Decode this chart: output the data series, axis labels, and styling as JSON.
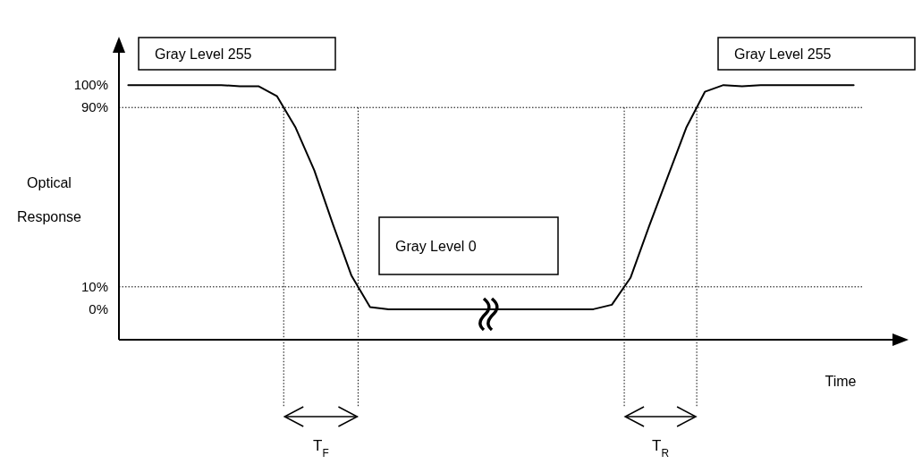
{
  "chart_data": {
    "type": "line",
    "ylabel": "Optical Response",
    "categories": [
      null,
      null,
      null,
      null,
      null,
      null,
      null,
      null,
      null,
      null,
      null,
      null,
      null,
      null,
      null,
      null,
      null,
      null,
      null,
      null,
      null,
      null,
      null,
      null,
      null,
      null,
      null,
      null,
      null,
      null,
      null,
      null,
      null,
      null,
      null,
      null,
      null,
      null,
      null,
      null
    ],
    "series": [
      {
        "color": "#000000",
        "values": [
          100,
          100,
          100,
          100,
          100,
          100,
          99.5,
          99.5,
          95,
          81,
          62,
          38,
          15,
          1,
          0,
          0,
          0,
          0,
          0,
          0,
          0,
          0,
          0,
          0,
          0,
          0,
          2,
          14,
          37,
          59,
          81,
          97,
          100,
          99.5,
          100,
          100,
          100,
          100,
          100,
          100
        ]
      }
    ],
    "ylim": [
      -13.6,
      120
    ],
    "yticks": [
      {
        "value": 0,
        "label": "0%"
      },
      {
        "value": 10,
        "label": "10%"
      },
      {
        "value": 90,
        "label": "90%"
      },
      {
        "value": 100,
        "label": "100%"
      }
    ],
    "tick_labels": "y",
    "grid": false,
    "line_style": "solid",
    "ref_lines": [
      {
        "axis": "y",
        "value": 90,
        "line_style": "dotted"
      },
      {
        "axis": "y",
        "value": 10,
        "line_style": "dotted"
      }
    ],
    "annotations": [
      "Gray Level 255",
      "Gray Level 0",
      "Gray Level 255",
      "Time",
      "T$_{F}$",
      "T$_{R}$"
    ]
  }
}
